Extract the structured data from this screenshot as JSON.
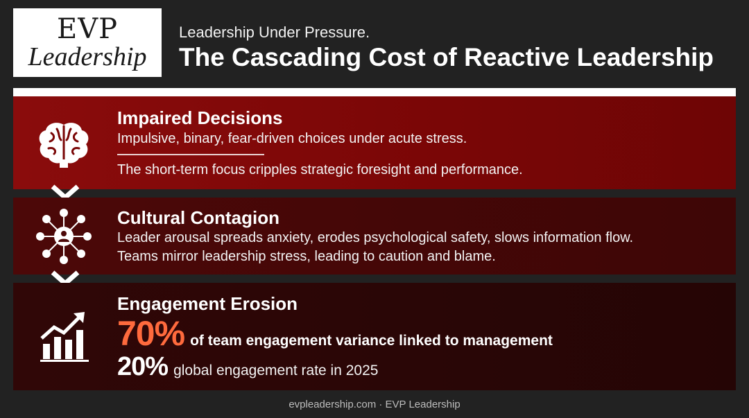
{
  "logo": {
    "line1": "EVP",
    "line2": "Leadership"
  },
  "header": {
    "subtitle": "Leadership Under Pressure.",
    "title": "The Cascading Cost of Reactive Leadership"
  },
  "panels": [
    {
      "title": "Impaired Decisions",
      "line1": "Impulsive, binary, fear-driven choices under acute stress.",
      "line2": "The short-term focus cripples strategic foresight and performance.",
      "icon": "brain-icon",
      "color": "#7a0606"
    },
    {
      "title": "Cultural Contagion",
      "line1": "Leader arousal spreads anxiety, erodes psychological safety, slows information flow.",
      "line2": "Teams mirror leadership stress, leading to caution and blame.",
      "icon": "network-people-icon",
      "color": "#450707"
    },
    {
      "title": "Engagement Erosion",
      "icon": "growth-chart-icon",
      "color": "#2a0606",
      "stats": [
        {
          "value": "70%",
          "text": "of team engagement variance linked to management",
          "color": "#ff6a3d"
        },
        {
          "value": "20%",
          "text": "global engagement rate in 2025",
          "color": "#ffffff"
        }
      ]
    }
  ],
  "footer": {
    "text": "evpleadership.com · EVP Leadership"
  }
}
